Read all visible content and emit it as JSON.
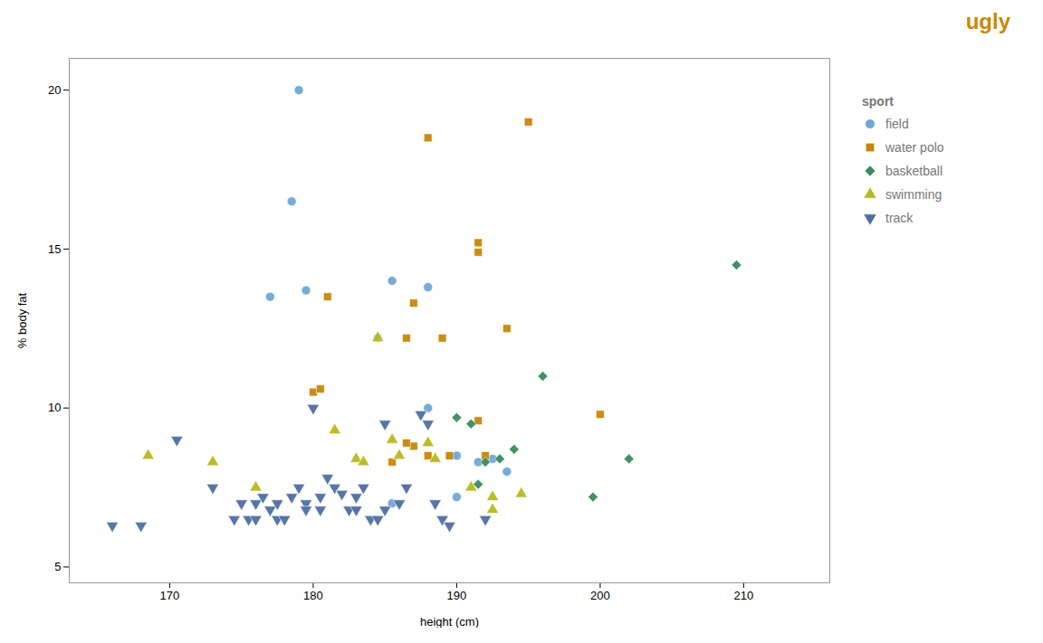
{
  "chart_data": {
    "type": "scatter",
    "title": "ugly",
    "xlabel": "height (cm)",
    "ylabel": "% body fat",
    "legend_title": "sport",
    "xlim": [
      163,
      216
    ],
    "ylim": [
      4.5,
      21
    ],
    "xticks": [
      170,
      180,
      190,
      200,
      210
    ],
    "yticks": [
      5,
      10,
      15,
      20
    ],
    "grid": false,
    "legend": "right",
    "series": [
      {
        "name": "field",
        "color": "#6fa8d4",
        "marker": "circle",
        "x": [
          179.0,
          178.5,
          177.0,
          179.5,
          185.5,
          188.0,
          184.5,
          190.0,
          191.5,
          188.0,
          192.5,
          193.5,
          190.0,
          185.5
        ],
        "y": [
          20.0,
          16.5,
          13.5,
          13.7,
          14.0,
          13.8,
          12.2,
          8.5,
          8.3,
          10.0,
          8.4,
          8.0,
          7.2,
          7.0
        ]
      },
      {
        "name": "water polo",
        "color": "#c8860a",
        "marker": "square",
        "x": [
          181.0,
          187.0,
          186.5,
          187.0,
          180.0,
          180.5,
          188.0,
          189.5,
          185.5,
          191.5,
          191.5,
          189.0,
          192.0,
          191.5,
          186.5,
          193.5,
          195.0,
          188.0,
          200.0
        ],
        "y": [
          13.5,
          13.3,
          12.2,
          8.8,
          10.5,
          10.6,
          8.5,
          8.5,
          8.3,
          15.2,
          14.9,
          12.2,
          8.5,
          9.6,
          8.9,
          12.5,
          19.0,
          18.5,
          9.8
        ]
      },
      {
        "name": "basketball",
        "color": "#3a8c5c",
        "marker": "diamond",
        "x": [
          190.0,
          191.0,
          192.0,
          191.5,
          193.0,
          194.0,
          196.0,
          199.5,
          202.0,
          209.5
        ],
        "y": [
          9.7,
          9.5,
          8.3,
          7.6,
          8.4,
          8.7,
          11.0,
          7.2,
          8.4,
          14.5
        ]
      },
      {
        "name": "swimming",
        "color": "#b8b820",
        "marker": "triangle-up",
        "x": [
          168.5,
          173.0,
          176.0,
          181.5,
          183.0,
          183.5,
          184.5,
          185.5,
          186.0,
          188.0,
          188.5,
          191.0,
          192.5,
          192.5,
          194.5
        ],
        "y": [
          8.5,
          8.3,
          7.5,
          9.3,
          8.4,
          8.3,
          12.2,
          9.0,
          8.5,
          8.9,
          8.4,
          7.5,
          7.2,
          6.8,
          7.3
        ]
      },
      {
        "name": "track",
        "color": "#4d6fa0",
        "marker": "triangle-down",
        "x": [
          166.0,
          168.0,
          170.5,
          173.0,
          174.5,
          175.0,
          175.5,
          176.0,
          176.0,
          176.5,
          177.0,
          177.5,
          177.5,
          178.0,
          178.5,
          179.0,
          179.5,
          179.5,
          180.0,
          180.5,
          180.5,
          181.0,
          181.5,
          182.0,
          182.5,
          183.0,
          183.0,
          183.5,
          184.0,
          184.5,
          185.0,
          185.0,
          186.0,
          186.5,
          187.5,
          188.0,
          188.5,
          189.0,
          189.5,
          192.0
        ],
        "y": [
          6.3,
          6.3,
          9.0,
          7.5,
          6.5,
          7.0,
          6.5,
          6.5,
          7.0,
          7.2,
          6.8,
          6.5,
          7.0,
          6.5,
          7.2,
          7.5,
          7.0,
          6.8,
          10.0,
          6.8,
          7.2,
          7.8,
          7.5,
          7.3,
          6.8,
          7.2,
          6.8,
          7.5,
          6.5,
          6.5,
          6.8,
          9.5,
          7.0,
          7.5,
          9.8,
          9.5,
          7.0,
          6.5,
          6.3,
          6.5
        ]
      }
    ]
  }
}
